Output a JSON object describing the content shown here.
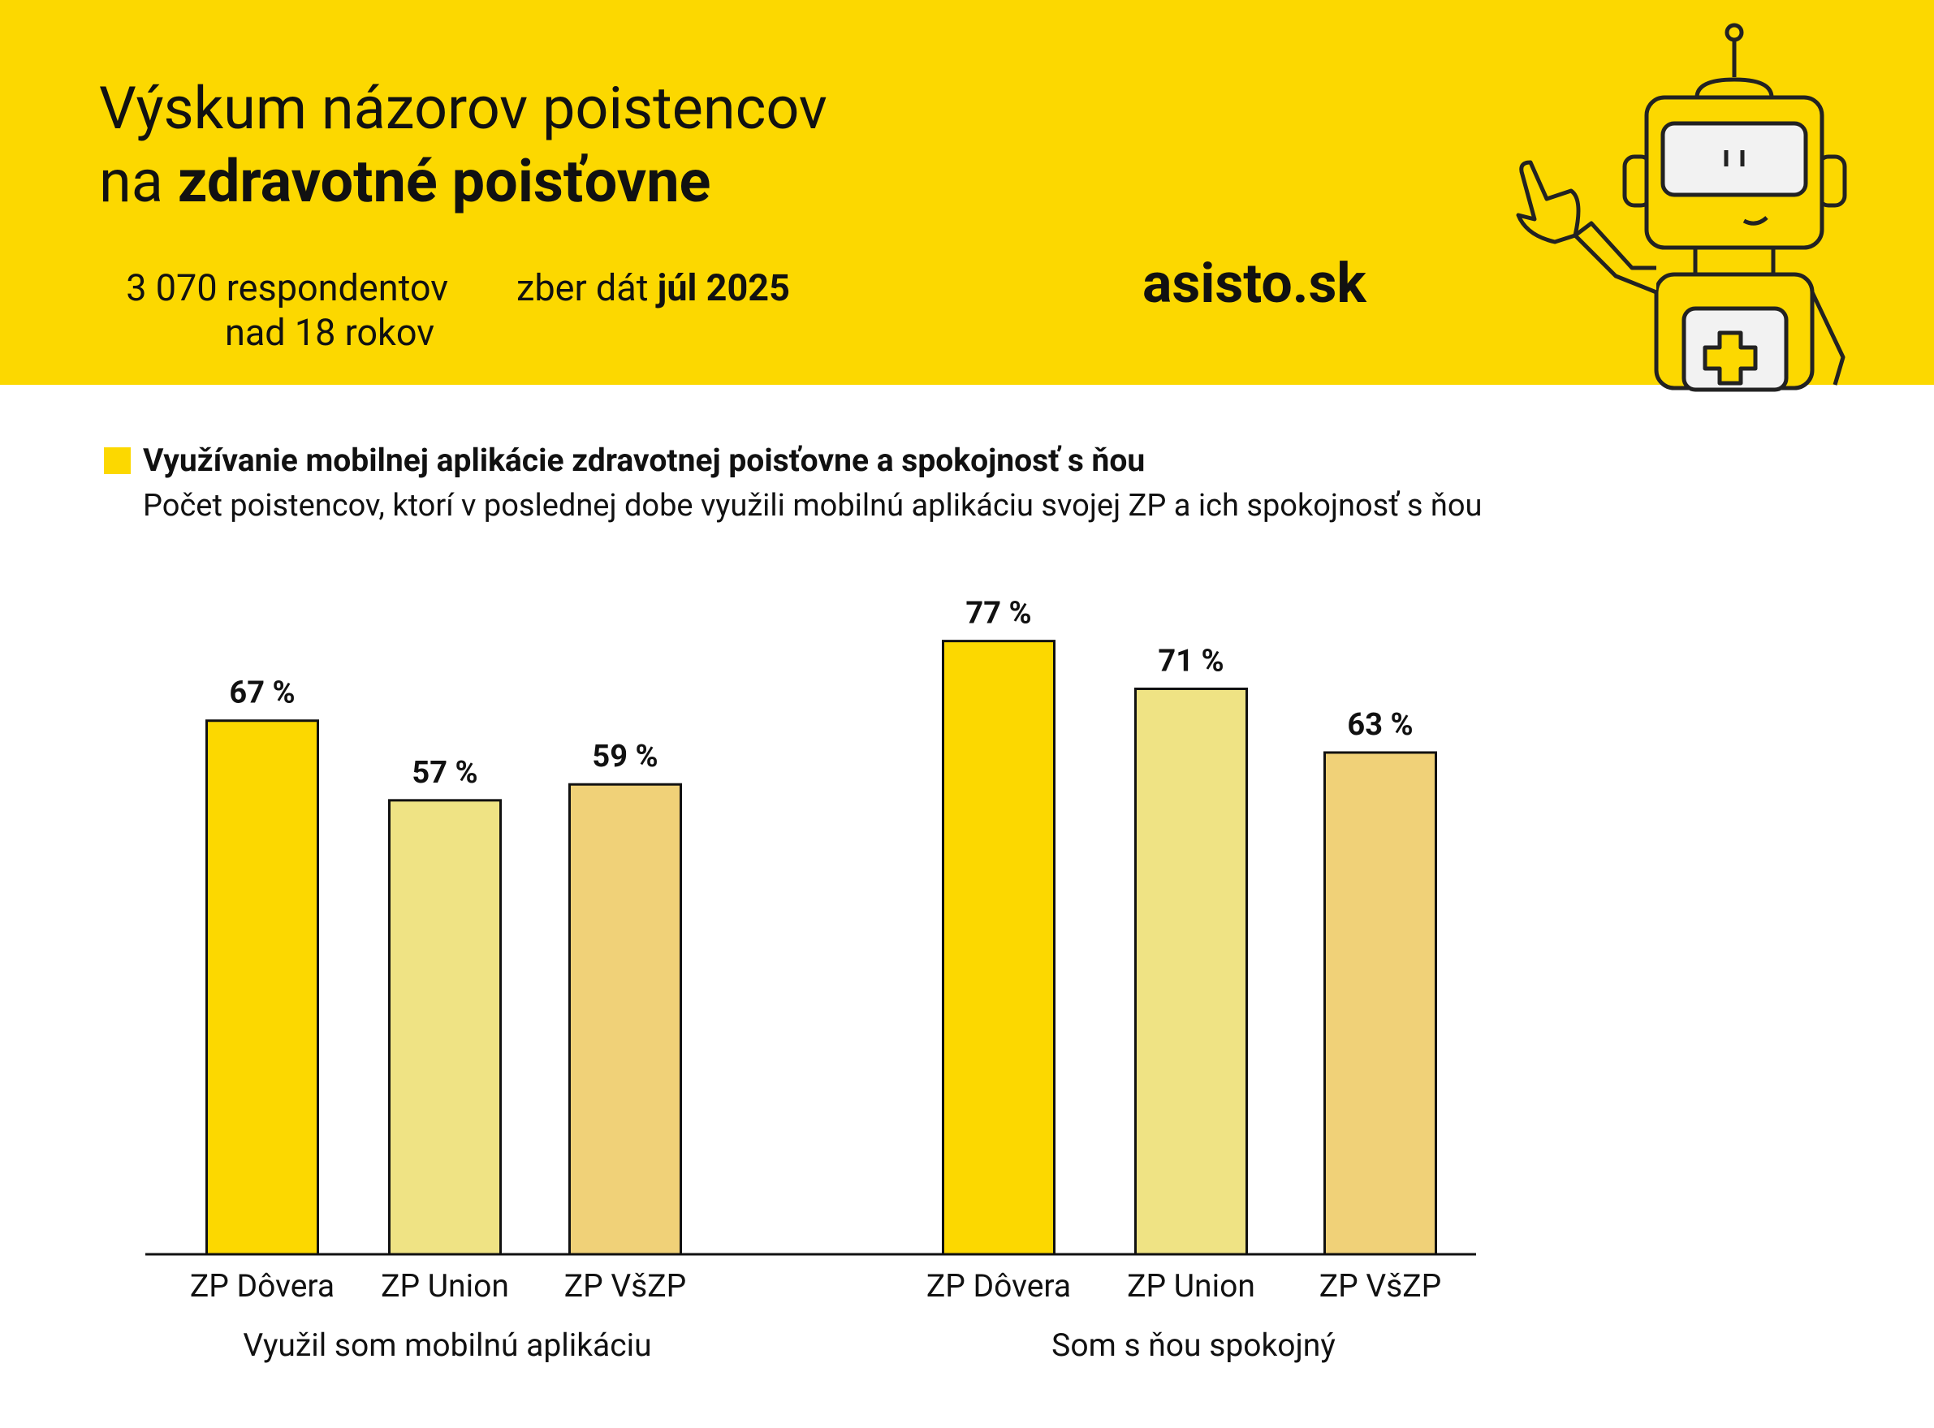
{
  "header": {
    "title_line1": "Výskum názorov poistencov",
    "title_line2_prefix": "na",
    "title_line2_bold": "zdravotné poisťovne",
    "respondents_line1": "3 070 respondentov",
    "respondents_line2": "nad 18 rokov",
    "collection_prefix": "zber dát",
    "collection_date": "júl 2025",
    "brand": "asisto.sk"
  },
  "chart_data": {
    "type": "bar",
    "title": "Využívanie mobilnej aplikácie zdravotnej poisťovne a spokojnosť s ňou",
    "subtitle": "Počet poistencov, ktorí v poslednej dobe využili mobilnú aplikáciu svojej ZP a ich spokojnosť s ňou",
    "categories": [
      "Využil som mobilnú aplikáciu",
      "Som s ňou spokojný"
    ],
    "series": [
      {
        "name": "ZP Dôvera",
        "color": "#fcd800",
        "values": [
          67,
          77
        ],
        "value_labels": [
          "67 %",
          "77 %"
        ]
      },
      {
        "name": "ZP Union",
        "color": "#efe384",
        "values": [
          57,
          71
        ],
        "value_labels": [
          "57 %",
          "71 %"
        ]
      },
      {
        "name": "ZP VšZP",
        "color": "#f0d178",
        "values": [
          59,
          63
        ],
        "value_labels": [
          "59 %",
          "63 %"
        ]
      }
    ]
  }
}
